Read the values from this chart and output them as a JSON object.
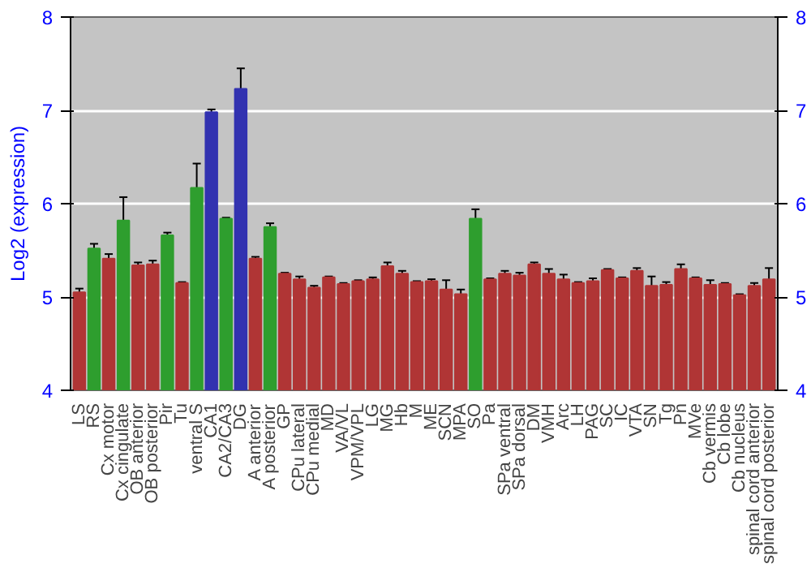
{
  "chart_data": {
    "type": "bar",
    "ylabel": "Log2 (expression)",
    "categories": [
      "LS",
      "RS",
      "Cx motor",
      "Cx cingulate",
      "OB anterior",
      "OB posterior",
      "Pir",
      "Tu",
      "ventral S",
      "CA1",
      "CA2/CA3",
      "DG",
      "A anterior",
      "A posterior",
      "GP",
      "CPu lateral",
      "CPu medial",
      "MD",
      "VA/VL",
      "VPM/VPL",
      "LG",
      "MG",
      "Hb",
      "M",
      "ME",
      "SCN",
      "MPA",
      "SO",
      "Pa",
      "SPa ventral",
      "SPa dorsal",
      "DM",
      "VMH",
      "Arc",
      "LH",
      "PAG",
      "SC",
      "IC",
      "VTA",
      "SN",
      "Tg",
      "Pn",
      "MVe",
      "Cb vermis",
      "Cb lobe",
      "Cb nucleus",
      "spinal cord anterior",
      "spinal cord posterior"
    ],
    "values": [
      5.05,
      5.52,
      5.41,
      5.82,
      5.34,
      5.35,
      5.66,
      5.15,
      6.17,
      6.98,
      5.84,
      7.23,
      5.41,
      5.75,
      5.25,
      5.19,
      5.1,
      5.21,
      5.14,
      5.17,
      5.19,
      5.33,
      5.25,
      5.16,
      5.17,
      5.08,
      5.03,
      5.84,
      5.19,
      5.25,
      5.23,
      5.35,
      5.25,
      5.19,
      5.15,
      5.17,
      5.29,
      5.2,
      5.28,
      5.12,
      5.13,
      5.3,
      5.2,
      5.13,
      5.14,
      5.02,
      5.12,
      5.19
    ],
    "errors": [
      0.04,
      0.05,
      0.05,
      0.25,
      0.03,
      0.04,
      0.03,
      0.01,
      0.26,
      0.03,
      0.01,
      0.22,
      0.02,
      0.04,
      0.01,
      0.03,
      0.02,
      0.01,
      0.01,
      0.01,
      0.02,
      0.04,
      0.03,
      0.01,
      0.02,
      0.1,
      0.05,
      0.1,
      0.01,
      0.03,
      0.03,
      0.02,
      0.05,
      0.05,
      0.01,
      0.03,
      0.01,
      0.01,
      0.03,
      0.1,
      0.03,
      0.05,
      0.01,
      0.05,
      0.01,
      0.01,
      0.03,
      0.12
    ],
    "colors": [
      "#b03535",
      "#2e9e2e",
      "#b03535",
      "#2e9e2e",
      "#b03535",
      "#b03535",
      "#2e9e2e",
      "#b03535",
      "#2e9e2e",
      "#3232b0",
      "#2e9e2e",
      "#3232b0",
      "#b03535",
      "#2e9e2e",
      "#b03535",
      "#b03535",
      "#b03535",
      "#b03535",
      "#b03535",
      "#b03535",
      "#b03535",
      "#b03535",
      "#b03535",
      "#b03535",
      "#b03535",
      "#b03535",
      "#b03535",
      "#2e9e2e",
      "#b03535",
      "#b03535",
      "#b03535",
      "#b03535",
      "#b03535",
      "#b03535",
      "#b03535",
      "#b03535",
      "#b03535",
      "#b03535",
      "#b03535",
      "#b03535",
      "#b03535",
      "#b03535",
      "#b03535",
      "#b03535",
      "#b03535",
      "#b03535",
      "#b03535",
      "#b03535"
    ],
    "ylim": [
      4,
      8
    ],
    "yticks": [
      4,
      5,
      6,
      7,
      8
    ],
    "y2lim": [
      4,
      8
    ],
    "y2ticks": [
      4,
      5,
      6,
      7,
      8
    ],
    "grid": "y"
  }
}
